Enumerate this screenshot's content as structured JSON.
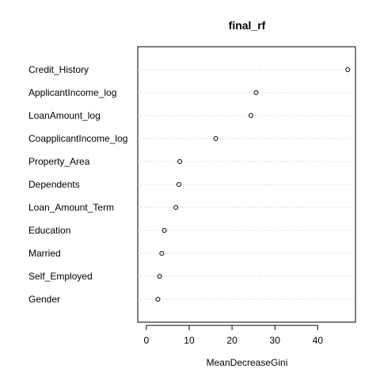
{
  "chart_data": {
    "type": "scatter",
    "title": "final_rf",
    "xlabel": "MeanDecreaseGini",
    "ylabel": "",
    "xlim": [
      -2.0,
      48.8
    ],
    "xticks": [
      0,
      10,
      20,
      30,
      40
    ],
    "xtick_labels": [
      "0",
      "10",
      "20",
      "30",
      "40"
    ],
    "grid": "horizontal dotted",
    "categories": [
      "Credit_History",
      "ApplicantIncome_log",
      "LoanAmount_log",
      "CoapplicantIncome_log",
      "Property_Area",
      "Dependents",
      "Loan_Amount_Term",
      "Education",
      "Married",
      "Self_Employed",
      "Gender"
    ],
    "values": [
      47.0,
      25.6,
      24.4,
      16.2,
      7.8,
      7.6,
      6.9,
      4.2,
      3.6,
      3.1,
      2.7
    ]
  }
}
